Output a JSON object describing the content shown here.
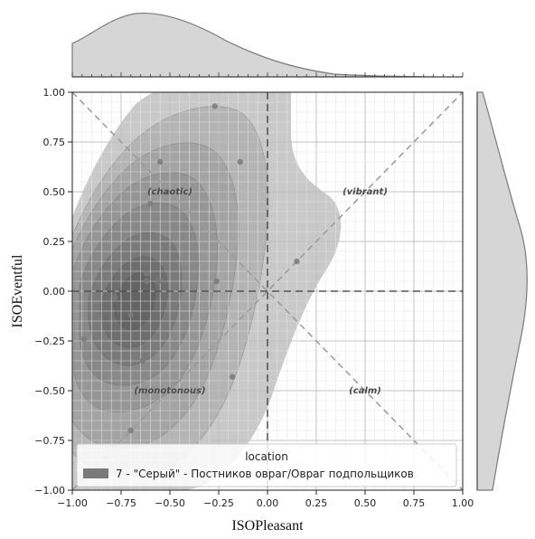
{
  "chart_data": {
    "type": "scatter",
    "subtype": "joint-kde-density",
    "xlabel": "ISOPleasant",
    "ylabel": "ISOEventful",
    "xlim": [
      -1.0,
      1.0
    ],
    "ylim": [
      -1.0,
      1.0
    ],
    "xticks": [
      "−1.00",
      "−0.75",
      "−0.50",
      "−0.25",
      "0.00",
      "0.25",
      "0.50",
      "0.75",
      "1.00"
    ],
    "yticks": [
      "−1.00",
      "−0.75",
      "−0.50",
      "−0.25",
      "0.00",
      "0.25",
      "0.50",
      "0.75",
      "1.00"
    ],
    "grid": true,
    "quadrant_labels": [
      {
        "text": "(chaotic)",
        "x": -0.5,
        "y": 0.5
      },
      {
        "text": "(vibrant)",
        "x": 0.5,
        "y": 0.5
      },
      {
        "text": "(monotonous)",
        "x": -0.5,
        "y": -0.5
      },
      {
        "text": "(calm)",
        "x": 0.5,
        "y": -0.5
      }
    ],
    "series": [
      {
        "name": "7 - \"Серый\" - Постников овраг/Овраг подпольщиков",
        "color": "#7a7a7a",
        "points": [
          [
            -0.27,
            0.93
          ],
          [
            -0.14,
            0.65
          ],
          [
            -0.55,
            0.65
          ],
          [
            -0.6,
            0.44
          ],
          [
            -0.62,
            0.09
          ],
          [
            -0.62,
            0.05
          ],
          [
            -0.56,
            0.05
          ],
          [
            -0.78,
            -0.03
          ],
          [
            -0.26,
            0.05
          ],
          [
            0.15,
            0.15
          ],
          [
            -0.7,
            -0.12
          ],
          [
            -0.94,
            -0.24
          ],
          [
            -0.64,
            -0.35
          ],
          [
            -0.18,
            -0.43
          ],
          [
            -0.7,
            -0.7
          ]
        ]
      }
    ],
    "legend": {
      "title": "location",
      "position": "lower-left"
    },
    "marginals": {
      "top": "kde",
      "right": "kde"
    }
  }
}
